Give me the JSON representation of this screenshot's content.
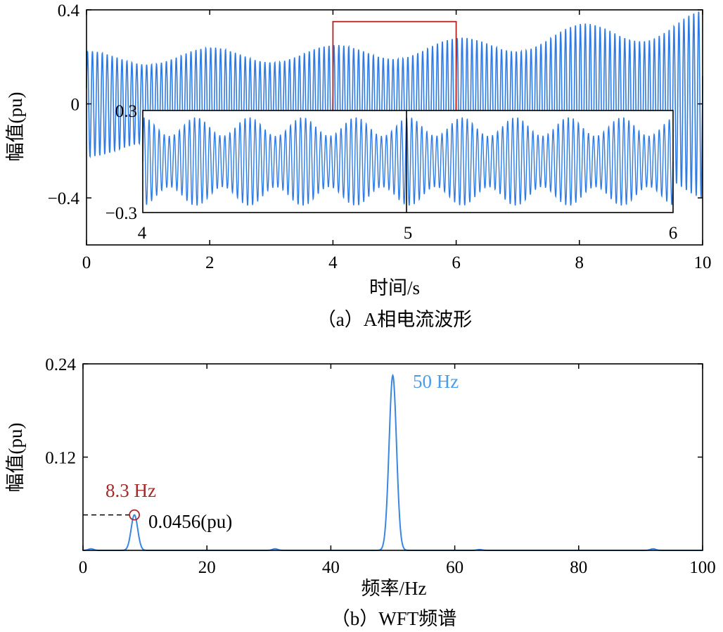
{
  "colors": {
    "signal": "#2F7BE6",
    "spectrum": "#3A86E0",
    "zoom_box": "#B22222",
    "annotation_low": "#A52A2A",
    "annotation_high": "#4A9BEA",
    "axis": "#000000"
  },
  "chart_data": [
    {
      "type": "line",
      "xlabel": "时间/s",
      "ylabel": "幅值(pu)",
      "caption": "（a）A相电流波形",
      "xlim": [
        0,
        10
      ],
      "ylim": [
        -0.6,
        0.4
      ],
      "x_ticks": [
        "0",
        "2",
        "4",
        "6",
        "8",
        "10"
      ],
      "y_ticks": [
        "0.4",
        "0",
        "-0.4"
      ],
      "series": [
        {
          "signal": "oscillating phase-A current",
          "envelope_t": [
            0,
            2,
            4,
            6,
            8,
            10
          ],
          "envelope_upper": [
            0.22,
            0.24,
            0.25,
            0.28,
            0.34,
            0.4
          ],
          "envelope_lower": [
            -0.23,
            -0.24,
            -0.25,
            -0.28,
            -0.34,
            -0.4
          ]
        }
      ],
      "zoom_window": [
        4,
        6
      ],
      "inset": {
        "xlim": [
          4,
          6
        ],
        "ylim": [
          -0.3,
          0.3
        ],
        "x_ticks": [
          "4",
          "5",
          "6"
        ],
        "y_ticks": [
          "0.3",
          "-0.3"
        ],
        "divider_at": 5
      }
    },
    {
      "type": "line",
      "xlabel": "频率/Hz",
      "ylabel": "幅值(pu)",
      "caption": "（b）WFT频谱",
      "xlim": [
        0,
        100
      ],
      "ylim": [
        0,
        0.24
      ],
      "x_ticks": [
        "0",
        "20",
        "40",
        "60",
        "80",
        "100"
      ],
      "y_ticks": [
        "0.24",
        "0.12"
      ],
      "series": [
        {
          "peaks": [
            {
              "f": 8.3,
              "a": 0.0456
            },
            {
              "f": 50,
              "a": 0.225
            },
            {
              "f": 1.3,
              "a": 0.002
            },
            {
              "f": 31,
              "a": 0.002
            },
            {
              "f": 64,
              "a": 0.001
            },
            {
              "f": 92,
              "a": 0.002
            }
          ]
        }
      ],
      "annotations": {
        "peak_low_label": "8.3 Hz",
        "peak_low_value": "0.0456(pu)",
        "peak_high_label": "50 Hz"
      }
    }
  ]
}
